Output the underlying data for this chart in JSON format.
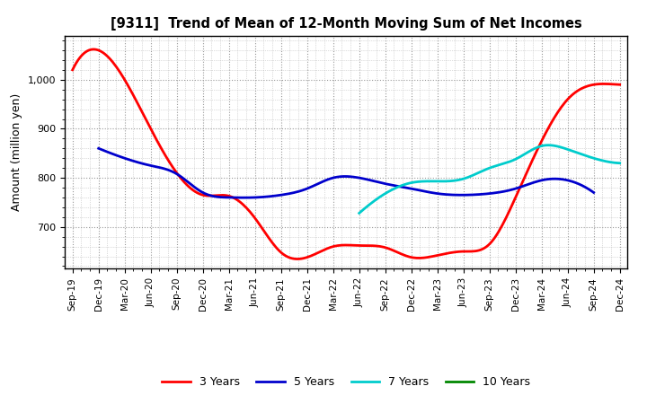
{
  "title": "[9311]  Trend of Mean of 12-Month Moving Sum of Net Incomes",
  "ylabel": "Amount (million yen)",
  "ylim": [
    615,
    1090
  ],
  "yticks": [
    700,
    800,
    900,
    1000
  ],
  "background_color": "#ffffff",
  "grid_color": "#999999",
  "x_labels": [
    "Sep-19",
    "Dec-19",
    "Mar-20",
    "Jun-20",
    "Sep-20",
    "Dec-20",
    "Mar-21",
    "Jun-21",
    "Sep-21",
    "Dec-21",
    "Mar-22",
    "Jun-22",
    "Sep-22",
    "Dec-22",
    "Mar-23",
    "Jun-23",
    "Sep-23",
    "Dec-23",
    "Mar-24",
    "Jun-24",
    "Sep-24",
    "Dec-24"
  ],
  "series": {
    "3 Years": {
      "color": "#ff0000",
      "values": [
        1020,
        1060,
        1000,
        900,
        810,
        765,
        763,
        718,
        648,
        638,
        660,
        662,
        658,
        638,
        642,
        650,
        665,
        760,
        875,
        960,
        990,
        990
      ]
    },
    "5 Years": {
      "color": "#0000cc",
      "values": [
        null,
        860,
        840,
        825,
        808,
        770,
        760,
        760,
        765,
        778,
        800,
        800,
        788,
        778,
        768,
        765,
        768,
        778,
        795,
        795,
        770,
        null
      ]
    },
    "7 Years": {
      "color": "#00cccc",
      "values": [
        null,
        null,
        null,
        null,
        null,
        null,
        null,
        null,
        null,
        null,
        null,
        728,
        768,
        790,
        793,
        798,
        820,
        838,
        865,
        858,
        840,
        830
      ]
    },
    "10 Years": {
      "color": "#008800",
      "values": [
        null,
        null,
        null,
        null,
        null,
        null,
        null,
        null,
        null,
        null,
        null,
        null,
        null,
        null,
        null,
        null,
        null,
        null,
        null,
        null,
        null,
        null
      ]
    }
  }
}
